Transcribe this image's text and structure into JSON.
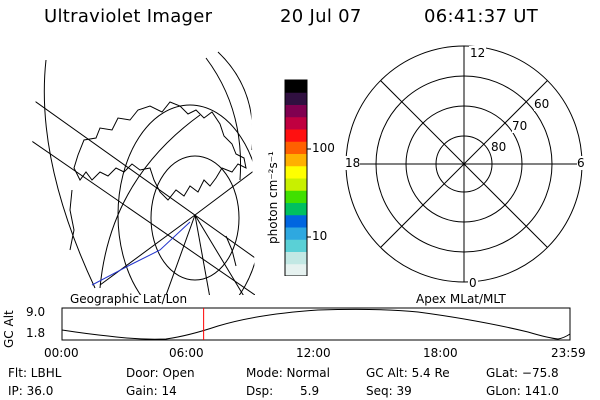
{
  "header": {
    "title": "Ultraviolet Imager",
    "date": "20 Jul 07",
    "time": "06:41:37 UT"
  },
  "geo_map": {
    "label": "Geographic Lat/Lon"
  },
  "colorbar": {
    "axis_label": "photon cm⁻²s⁻¹",
    "ticks": [
      {
        "value": 100,
        "text": "100"
      },
      {
        "value": 10,
        "text": "10"
      }
    ],
    "colors": [
      "#e6f2f0",
      "#c2e8e4",
      "#5ad0d6",
      "#2ea8e0",
      "#0066e0",
      "#00c060",
      "#40e000",
      "#c8f000",
      "#ffff00",
      "#ffb000",
      "#ff6000",
      "#ff1010",
      "#c00040",
      "#800050",
      "#301040",
      "#000000"
    ]
  },
  "polar": {
    "label": "Apex MLat/MLT",
    "mlt_labels": {
      "top": "12",
      "bottom": "0",
      "left": "18",
      "right": "6"
    },
    "lat_labels": [
      "60",
      "70",
      "80"
    ]
  },
  "alt_plot": {
    "axis_label": "GC Alt",
    "y_max": "9.0",
    "y_min": "1.8",
    "x_ticks": [
      "00:00",
      "06:00",
      "12:00",
      "18:00",
      "23:59"
    ],
    "current_time_fraction": 0.2788,
    "marker_color": "#ff0000"
  },
  "footer": {
    "filter": "Flt: LBHL",
    "door": "Door: Open",
    "mode": "Mode: Normal",
    "gc_alt": "GC Alt: 5.4 Re",
    "glat": "GLat: −75.8",
    "ip": "IP: 36.0",
    "gain": "Gain: 14",
    "dsp_label": "Dsp:",
    "dsp_value": "5.9",
    "seq": "Seq: 39",
    "glon": "GLon: 141.0"
  }
}
